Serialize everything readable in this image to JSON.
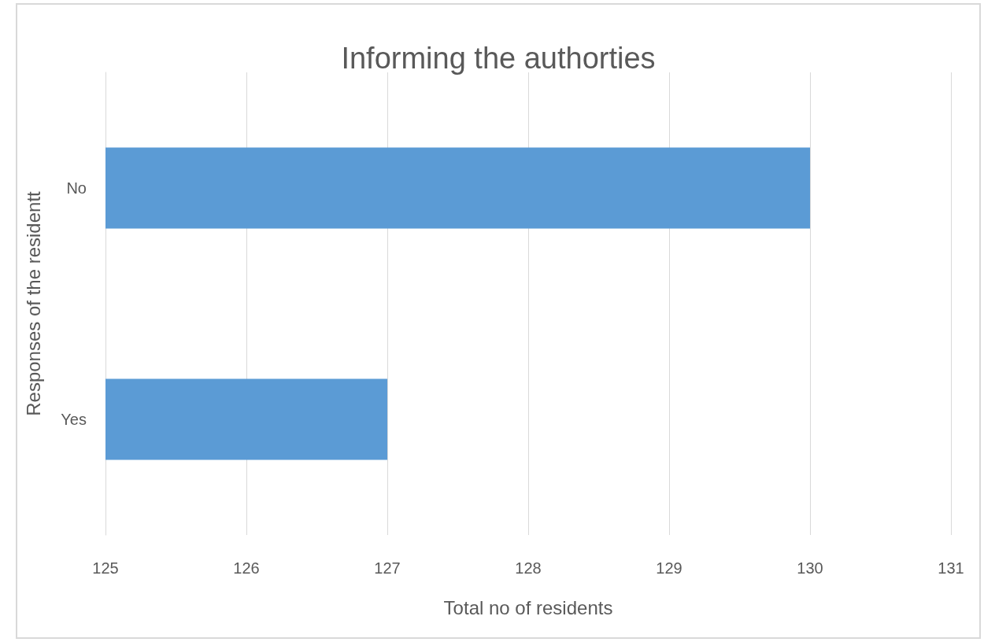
{
  "chart_data": {
    "type": "bar",
    "orientation": "horizontal",
    "title": "Informing the authorties",
    "xlabel": "Total no of residents",
    "ylabel": "Responses of the residentt",
    "categories": [
      "No",
      "Yes"
    ],
    "values": [
      130,
      127
    ],
    "color": "#5b9bd5",
    "xlim": [
      125,
      131
    ],
    "xticks": [
      125,
      126,
      127,
      128,
      129,
      130,
      131
    ],
    "grid": "x"
  }
}
